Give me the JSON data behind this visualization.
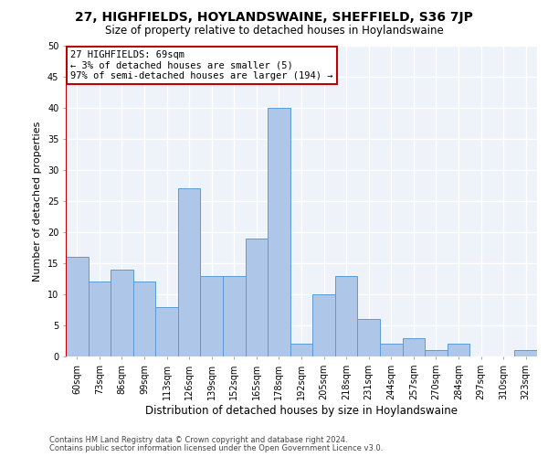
{
  "title1": "27, HIGHFIELDS, HOYLANDSWAINE, SHEFFIELD, S36 7JP",
  "title2": "Size of property relative to detached houses in Hoylandswaine",
  "xlabel": "Distribution of detached houses by size in Hoylandswaine",
  "ylabel": "Number of detached properties",
  "categories": [
    "60sqm",
    "73sqm",
    "86sqm",
    "99sqm",
    "113sqm",
    "126sqm",
    "139sqm",
    "152sqm",
    "165sqm",
    "178sqm",
    "192sqm",
    "205sqm",
    "218sqm",
    "231sqm",
    "244sqm",
    "257sqm",
    "270sqm",
    "284sqm",
    "297sqm",
    "310sqm",
    "323sqm"
  ],
  "values": [
    16,
    12,
    14,
    12,
    8,
    27,
    13,
    13,
    19,
    40,
    2,
    10,
    13,
    6,
    2,
    3,
    1,
    2,
    0,
    0,
    1
  ],
  "bar_color": "#aec6e8",
  "bar_edge_color": "#5b9bd5",
  "highlight_color": "#c00000",
  "annotation_text": "27 HIGHFIELDS: 69sqm\n← 3% of detached houses are smaller (5)\n97% of semi-detached houses are larger (194) →",
  "annotation_box_color": "white",
  "annotation_box_edge_color": "#c00000",
  "ylim": [
    0,
    50
  ],
  "yticks": [
    0,
    5,
    10,
    15,
    20,
    25,
    30,
    35,
    40,
    45,
    50
  ],
  "footer1": "Contains HM Land Registry data © Crown copyright and database right 2024.",
  "footer2": "Contains public sector information licensed under the Open Government Licence v3.0.",
  "bg_color": "#eef2f9",
  "grid_color": "white",
  "title1_fontsize": 10,
  "title2_fontsize": 8.5,
  "xlabel_fontsize": 8.5,
  "ylabel_fontsize": 8,
  "tick_fontsize": 7,
  "annotation_fontsize": 7.5,
  "footer_fontsize": 6
}
